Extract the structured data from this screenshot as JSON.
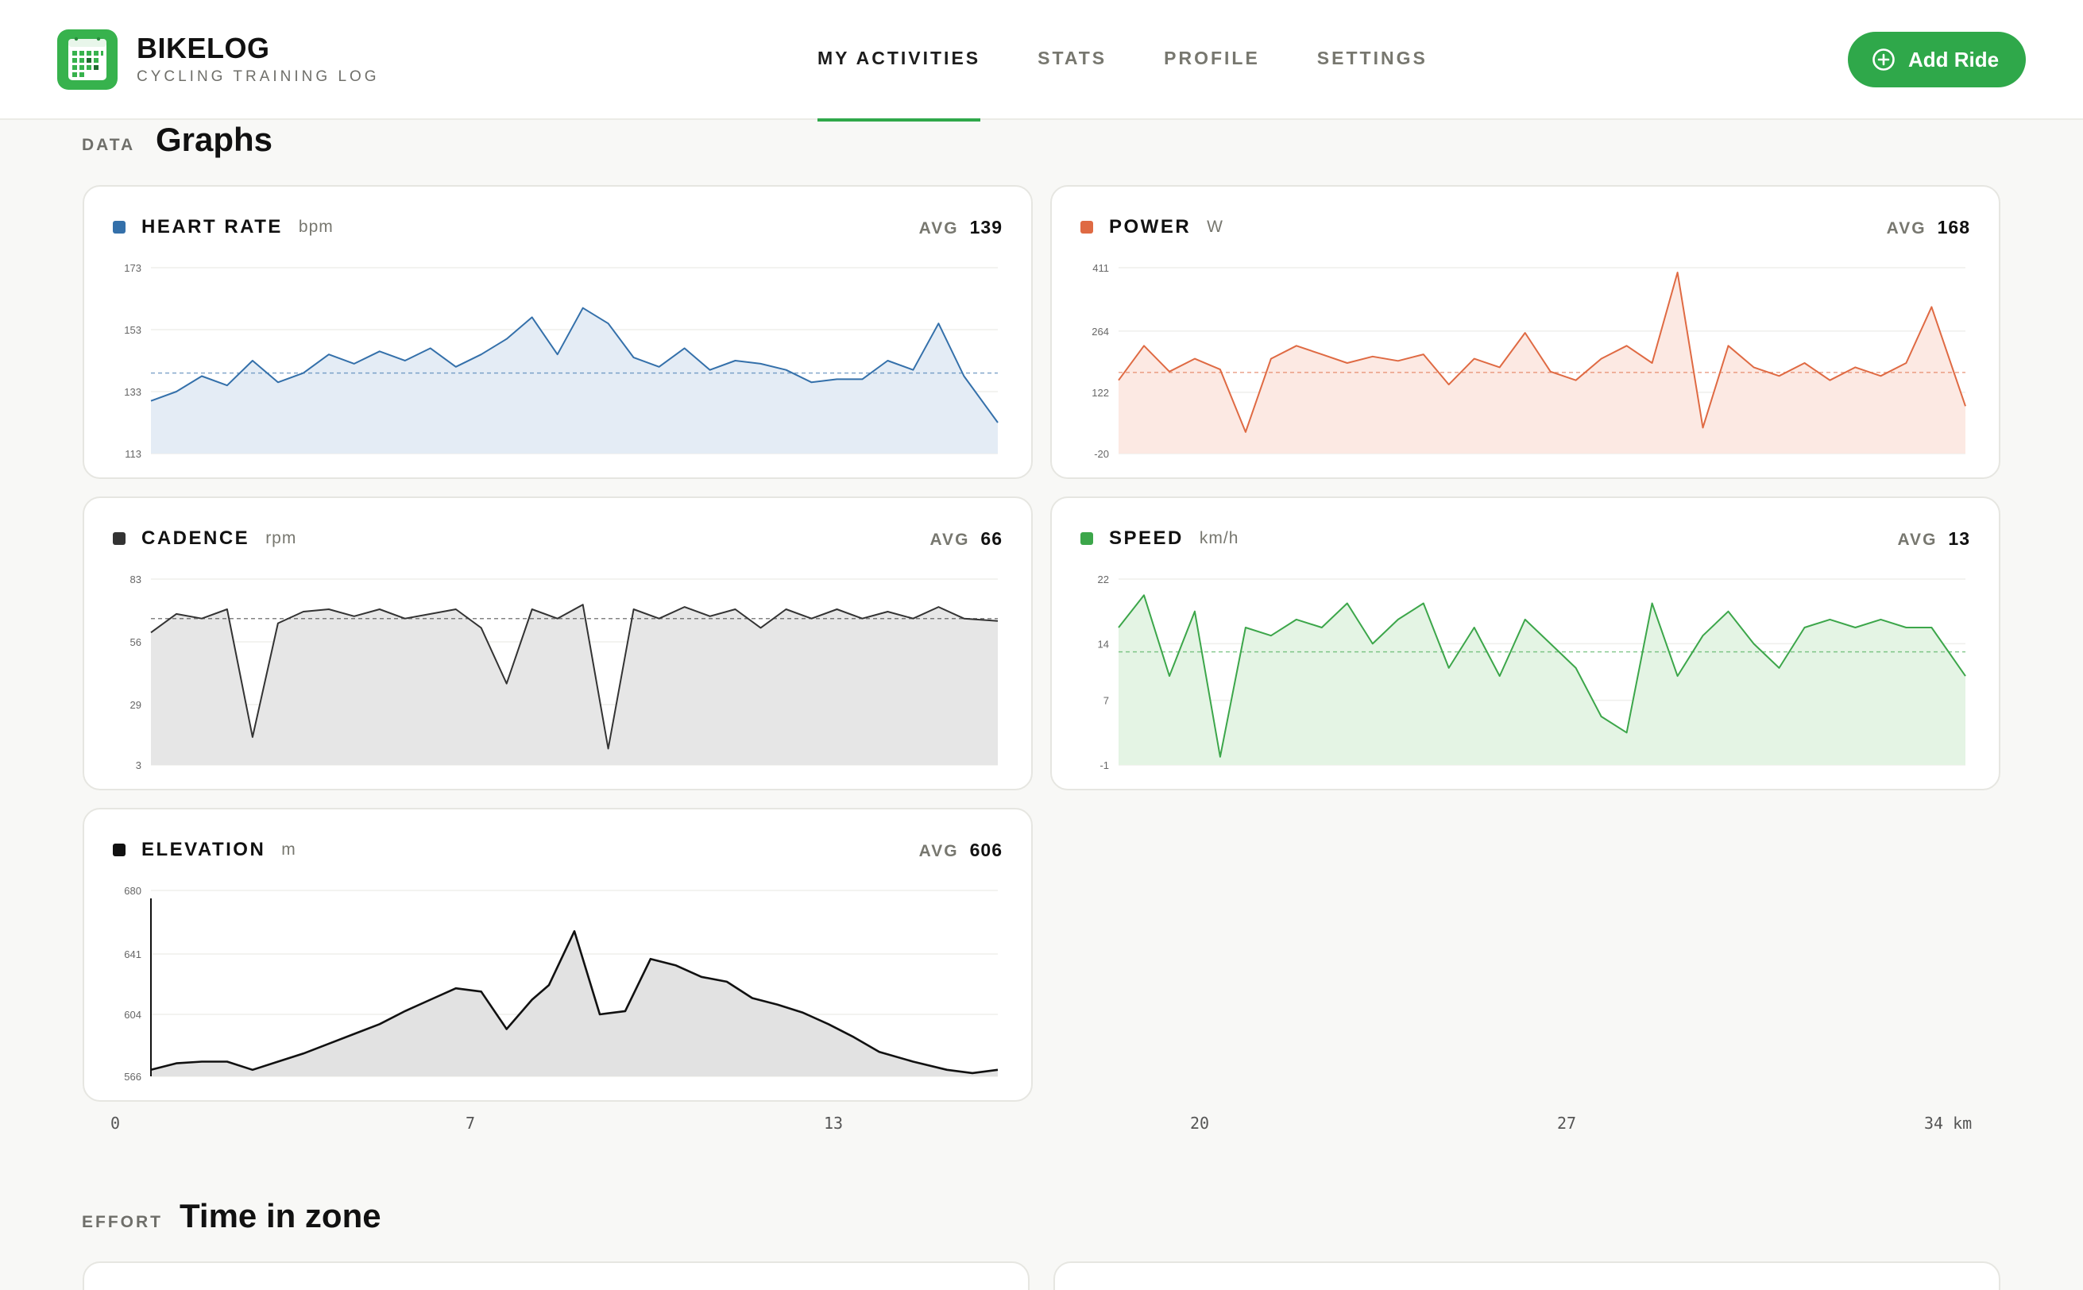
{
  "app": {
    "title": "BIKELOG",
    "subtitle": "CYCLING TRAINING LOG"
  },
  "nav": [
    {
      "label": "MY ACTIVITIES",
      "active": true
    },
    {
      "label": "STATS",
      "active": false
    },
    {
      "label": "PROFILE",
      "active": false
    },
    {
      "label": "SETTINGS",
      "active": false
    }
  ],
  "actions": {
    "add_ride_label": "Add Ride"
  },
  "sections": {
    "graphs": {
      "label": "DATA",
      "title": "Graphs"
    },
    "effort": {
      "label": "EFFORT",
      "title": "Time in zone"
    }
  },
  "metrics": {
    "heart_rate": {
      "name": "HEART RATE",
      "unit": "bpm",
      "avg_label": "AVG",
      "avg": "139",
      "color": "#3470aa",
      "fill": "#e4ecf5"
    },
    "power": {
      "name": "POWER",
      "unit": "W",
      "avg_label": "AVG",
      "avg": "168",
      "color": "#df6a43",
      "fill": "#fce9e3"
    },
    "cadence": {
      "name": "CADENCE",
      "unit": "rpm",
      "avg_label": "AVG",
      "avg": "66",
      "color": "#333333",
      "fill": "#e6e6e6"
    },
    "speed": {
      "name": "SPEED",
      "unit": "km/h",
      "avg_label": "AVG",
      "avg": "13",
      "color": "#3ca64a",
      "fill": "#e4f4e4"
    },
    "elevation": {
      "name": "ELEVATION",
      "unit": "m",
      "avg_label": "AVG",
      "avg": "606",
      "color": "#111111",
      "fill": "#e2e2e2"
    }
  },
  "x_axis": {
    "ticks": [
      "0",
      "7",
      "13",
      "20",
      "27",
      "34 km"
    ]
  },
  "chart_data": [
    {
      "type": "line",
      "metric": "heart_rate",
      "y_ticks": [
        173,
        153,
        133,
        113
      ],
      "ylim": [
        113,
        173
      ],
      "avg": 139,
      "x": [
        0,
        0.03,
        0.06,
        0.09,
        0.12,
        0.15,
        0.18,
        0.21,
        0.24,
        0.27,
        0.3,
        0.33,
        0.36,
        0.39,
        0.42,
        0.45,
        0.48,
        0.51,
        0.54,
        0.57,
        0.6,
        0.63,
        0.66,
        0.69,
        0.72,
        0.75,
        0.78,
        0.81,
        0.84,
        0.87,
        0.9,
        0.93,
        0.96,
        1.0
      ],
      "values": [
        130,
        133,
        138,
        135,
        143,
        136,
        139,
        145,
        142,
        146,
        143,
        147,
        141,
        145,
        150,
        157,
        145,
        160,
        155,
        144,
        141,
        147,
        140,
        143,
        142,
        140,
        136,
        137,
        137,
        143,
        140,
        155,
        138,
        123
      ]
    },
    {
      "type": "line",
      "metric": "power",
      "y_ticks": [
        411,
        264,
        122,
        -20
      ],
      "ylim": [
        -20,
        411
      ],
      "avg": 168,
      "x": [
        0,
        0.03,
        0.06,
        0.09,
        0.12,
        0.15,
        0.18,
        0.21,
        0.24,
        0.27,
        0.3,
        0.33,
        0.36,
        0.39,
        0.42,
        0.45,
        0.48,
        0.51,
        0.54,
        0.57,
        0.6,
        0.63,
        0.66,
        0.69,
        0.72,
        0.75,
        0.78,
        0.81,
        0.84,
        0.87,
        0.9,
        0.93,
        0.96,
        1.0
      ],
      "values": [
        150,
        230,
        170,
        200,
        175,
        30,
        200,
        230,
        210,
        190,
        205,
        195,
        210,
        140,
        200,
        180,
        260,
        170,
        150,
        200,
        230,
        190,
        400,
        40,
        230,
        180,
        160,
        190,
        150,
        180,
        160,
        190,
        320,
        90
      ]
    },
    {
      "type": "line",
      "metric": "cadence",
      "y_ticks": [
        83,
        56,
        29,
        3
      ],
      "ylim": [
        3,
        83
      ],
      "avg": 66,
      "x": [
        0,
        0.03,
        0.06,
        0.09,
        0.12,
        0.15,
        0.18,
        0.21,
        0.24,
        0.27,
        0.3,
        0.33,
        0.36,
        0.39,
        0.42,
        0.45,
        0.48,
        0.51,
        0.54,
        0.57,
        0.6,
        0.63,
        0.66,
        0.69,
        0.72,
        0.75,
        0.78,
        0.81,
        0.84,
        0.87,
        0.9,
        0.93,
        0.96,
        1.0
      ],
      "values": [
        60,
        68,
        66,
        70,
        15,
        64,
        69,
        70,
        67,
        70,
        66,
        68,
        70,
        62,
        38,
        70,
        66,
        72,
        10,
        70,
        66,
        71,
        67,
        70,
        62,
        70,
        66,
        70,
        66,
        69,
        66,
        71,
        66,
        65
      ]
    },
    {
      "type": "line",
      "metric": "speed",
      "y_ticks": [
        22,
        14,
        7,
        -1
      ],
      "ylim": [
        -1,
        22
      ],
      "avg": 13,
      "x": [
        0,
        0.03,
        0.06,
        0.09,
        0.12,
        0.15,
        0.18,
        0.21,
        0.24,
        0.27,
        0.3,
        0.33,
        0.36,
        0.39,
        0.42,
        0.45,
        0.48,
        0.51,
        0.54,
        0.57,
        0.6,
        0.63,
        0.66,
        0.69,
        0.72,
        0.75,
        0.78,
        0.81,
        0.84,
        0.87,
        0.9,
        0.93,
        0.96,
        1.0
      ],
      "values": [
        16,
        20,
        10,
        18,
        0,
        16,
        15,
        17,
        16,
        19,
        14,
        17,
        19,
        11,
        16,
        10,
        17,
        14,
        11,
        5,
        3,
        19,
        10,
        15,
        18,
        14,
        11,
        16,
        17,
        16,
        17,
        16,
        16,
        10
      ]
    },
    {
      "type": "line",
      "metric": "elevation",
      "y_ticks": [
        680,
        641,
        604,
        566
      ],
      "ylim": [
        566,
        680
      ],
      "avg": 606,
      "x": [
        0,
        0.03,
        0.06,
        0.09,
        0.12,
        0.15,
        0.18,
        0.21,
        0.24,
        0.27,
        0.3,
        0.33,
        0.36,
        0.39,
        0.42,
        0.45,
        0.47,
        0.5,
        0.53,
        0.56,
        0.59,
        0.62,
        0.65,
        0.68,
        0.71,
        0.74,
        0.77,
        0.8,
        0.83,
        0.86,
        0.9,
        0.94,
        0.97,
        1.0
      ],
      "values": [
        570,
        574,
        575,
        575,
        570,
        575,
        580,
        586,
        592,
        598,
        606,
        613,
        620,
        618,
        595,
        613,
        622,
        655,
        604,
        606,
        638,
        634,
        627,
        624,
        614,
        610,
        605,
        598,
        590,
        581,
        575,
        570,
        568,
        570
      ]
    }
  ]
}
